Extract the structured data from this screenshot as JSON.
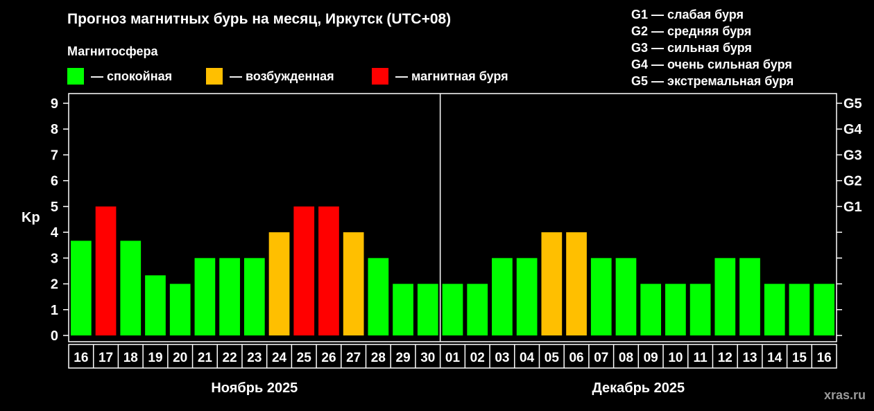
{
  "header": {
    "title": "Прогноз магнитных бурь на месяц, Иркутск (UTC+08)",
    "subtitle": "Магнитосфера"
  },
  "legend": [
    {
      "label": "— спокойная",
      "color": "#00ff00"
    },
    {
      "label": "— возбужденная",
      "color": "#ffbf00"
    },
    {
      "label": "— магнитная буря",
      "color": "#ff0000"
    }
  ],
  "storm_scale": [
    "G1 — слабая буря",
    "G2 — средняя буря",
    "G3 — сильная буря",
    "G4 — очень сильная буря",
    "G5 — экстремальная буря"
  ],
  "watermark": "xras.ru",
  "chart_data": {
    "type": "bar",
    "title": "Прогноз магнитных бурь на месяц, Иркутск (UTC+08)",
    "ylabel": "Kp",
    "ylim": [
      0,
      9
    ],
    "yticks": [
      "0",
      "1",
      "2",
      "3",
      "4",
      "5",
      "6",
      "7",
      "8",
      "9"
    ],
    "y2ticks": [
      {
        "value": 5,
        "label": "G1"
      },
      {
        "value": 6,
        "label": "G2"
      },
      {
        "value": 7,
        "label": "G3"
      },
      {
        "value": 8,
        "label": "G4"
      },
      {
        "value": 9,
        "label": "G5"
      }
    ],
    "grid": false,
    "categories": [
      "16",
      "17",
      "18",
      "19",
      "20",
      "21",
      "22",
      "23",
      "24",
      "25",
      "26",
      "27",
      "28",
      "29",
      "30",
      "01",
      "02",
      "03",
      "04",
      "05",
      "06",
      "07",
      "08",
      "09",
      "10",
      "11",
      "12",
      "13",
      "14",
      "15",
      "16"
    ],
    "values": [
      3.67,
      5,
      3.67,
      2.33,
      2,
      3,
      3,
      3,
      4,
      5,
      5,
      4,
      3,
      2,
      2,
      2,
      2,
      3,
      3,
      4,
      4,
      3,
      3,
      2,
      2,
      2,
      3,
      3,
      2,
      2,
      2
    ],
    "levels": [
      "calm",
      "storm",
      "calm",
      "calm",
      "calm",
      "calm",
      "calm",
      "calm",
      "excited",
      "storm",
      "storm",
      "excited",
      "calm",
      "calm",
      "calm",
      "calm",
      "calm",
      "calm",
      "calm",
      "excited",
      "excited",
      "calm",
      "calm",
      "calm",
      "calm",
      "calm",
      "calm",
      "calm",
      "calm",
      "calm",
      "calm"
    ],
    "level_colors": {
      "calm": "#00ff00",
      "excited": "#ffbf00",
      "storm": "#ff0000"
    },
    "months": [
      {
        "label": "Ноябрь 2025",
        "from": 0,
        "to": 14
      },
      {
        "label": "Декабрь 2025",
        "from": 15,
        "to": 30
      }
    ]
  }
}
